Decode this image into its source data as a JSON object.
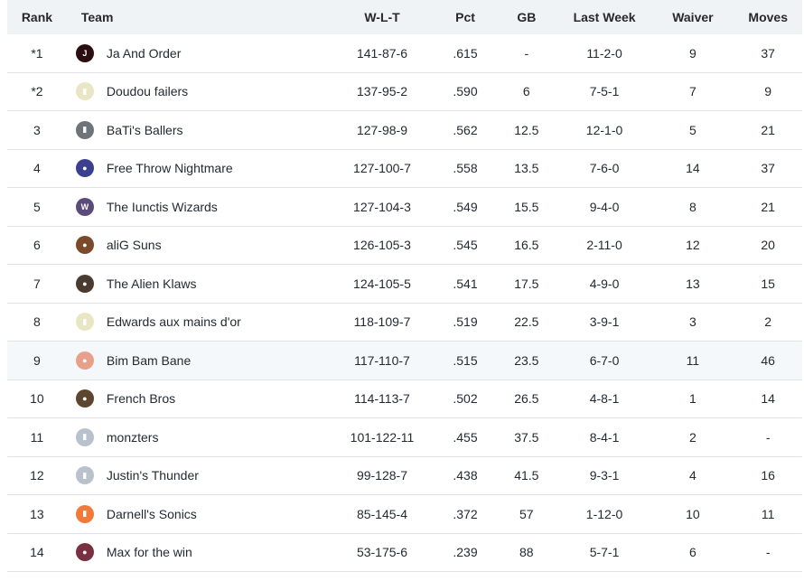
{
  "headers": {
    "rank": "Rank",
    "team": "Team",
    "wlt": "W-L-T",
    "pct": "Pct",
    "gb": "GB",
    "last_week": "Last Week",
    "waiver": "Waiver",
    "moves": "Moves"
  },
  "rows": [
    {
      "rank": "*1",
      "team": "Ja And Order",
      "logo": "ja-and-order-logo-icon",
      "logo_color": "#2b0f10",
      "logo_glyph": "J",
      "wlt": "141-87-6",
      "pct": ".615",
      "gb": "-",
      "last_week": "11-2-0",
      "waiver": "9",
      "moves": "37"
    },
    {
      "rank": "*2",
      "team": "Doudou failers",
      "logo": "jersey-logo-icon",
      "logo_color": "#e9e6c5",
      "logo_glyph": "▮",
      "wlt": "137-95-2",
      "pct": ".590",
      "gb": "6",
      "last_week": "7-5-1",
      "waiver": "7",
      "moves": "9"
    },
    {
      "rank": "3",
      "team": "BaTi's Ballers",
      "logo": "gray-jersey-logo-icon",
      "logo_color": "#6f7478",
      "logo_glyph": "▮",
      "wlt": "127-98-9",
      "pct": ".562",
      "gb": "12.5",
      "last_week": "12-1-0",
      "waiver": "5",
      "moves": "21"
    },
    {
      "rank": "4",
      "team": "Free Throw Nightmare",
      "logo": "player-avatar-logo-icon",
      "logo_color": "#3b3f8f",
      "logo_glyph": "●",
      "wlt": "127-100-7",
      "pct": ".558",
      "gb": "13.5",
      "last_week": "7-6-0",
      "waiver": "14",
      "moves": "37"
    },
    {
      "rank": "5",
      "team": "The Iunctis Wizards",
      "logo": "wizards-logo-icon",
      "logo_color": "#5b4b7a",
      "logo_glyph": "W",
      "wlt": "127-104-3",
      "pct": ".549",
      "gb": "15.5",
      "last_week": "9-4-0",
      "waiver": "8",
      "moves": "21"
    },
    {
      "rank": "6",
      "team": "aliG Suns",
      "logo": "suns-logo-icon",
      "logo_color": "#7a4a2a",
      "logo_glyph": "●",
      "wlt": "126-105-3",
      "pct": ".545",
      "gb": "16.5",
      "last_week": "2-11-0",
      "waiver": "12",
      "moves": "20"
    },
    {
      "rank": "7",
      "team": "The Alien Klaws",
      "logo": "player-avatar-logo-icon",
      "logo_color": "#4a3a2f",
      "logo_glyph": "●",
      "wlt": "124-105-5",
      "pct": ".541",
      "gb": "17.5",
      "last_week": "4-9-0",
      "waiver": "13",
      "moves": "15"
    },
    {
      "rank": "8",
      "team": "Edwards aux mains d'or",
      "logo": "jersey-logo-icon",
      "logo_color": "#e9e6c5",
      "logo_glyph": "▮",
      "wlt": "118-109-7",
      "pct": ".519",
      "gb": "22.5",
      "last_week": "3-9-1",
      "waiver": "3",
      "moves": "2"
    },
    {
      "rank": "9",
      "team": "Bim Bam Bane",
      "logo": "cartoon-face-logo-icon",
      "logo_color": "#e8a08a",
      "logo_glyph": "●",
      "wlt": "117-110-7",
      "pct": ".515",
      "gb": "23.5",
      "last_week": "6-7-0",
      "waiver": "11",
      "moves": "46"
    },
    {
      "rank": "10",
      "team": "French Bros",
      "logo": "player-avatar-logo-icon",
      "logo_color": "#5c4630",
      "logo_glyph": "●",
      "wlt": "114-113-7",
      "pct": ".502",
      "gb": "26.5",
      "last_week": "4-8-1",
      "waiver": "1",
      "moves": "14"
    },
    {
      "rank": "11",
      "team": "monzters",
      "logo": "default-jersey-logo-icon",
      "logo_color": "#b9c1cc",
      "logo_glyph": "▮",
      "wlt": "101-122-11",
      "pct": ".455",
      "gb": "37.5",
      "last_week": "8-4-1",
      "waiver": "2",
      "moves": "-"
    },
    {
      "rank": "12",
      "team": "Justin's Thunder",
      "logo": "default-jersey-logo-icon",
      "logo_color": "#b9c1cc",
      "logo_glyph": "▮",
      "wlt": "99-128-7",
      "pct": ".438",
      "gb": "41.5",
      "last_week": "9-3-1",
      "waiver": "4",
      "moves": "16"
    },
    {
      "rank": "13",
      "team": "Darnell's Sonics",
      "logo": "sonics-jersey-logo-icon",
      "logo_color": "#f07a3a",
      "logo_glyph": "▮",
      "wlt": "85-145-4",
      "pct": ".372",
      "gb": "57",
      "last_week": "1-12-0",
      "waiver": "10",
      "moves": "11"
    },
    {
      "rank": "14",
      "team": "Max for the win",
      "logo": "player-avatar-logo-icon",
      "logo_color": "#7a3040",
      "logo_glyph": "●",
      "wlt": "53-175-6",
      "pct": ".239",
      "gb": "88",
      "last_week": "5-7-1",
      "waiver": "6",
      "moves": "-"
    }
  ]
}
